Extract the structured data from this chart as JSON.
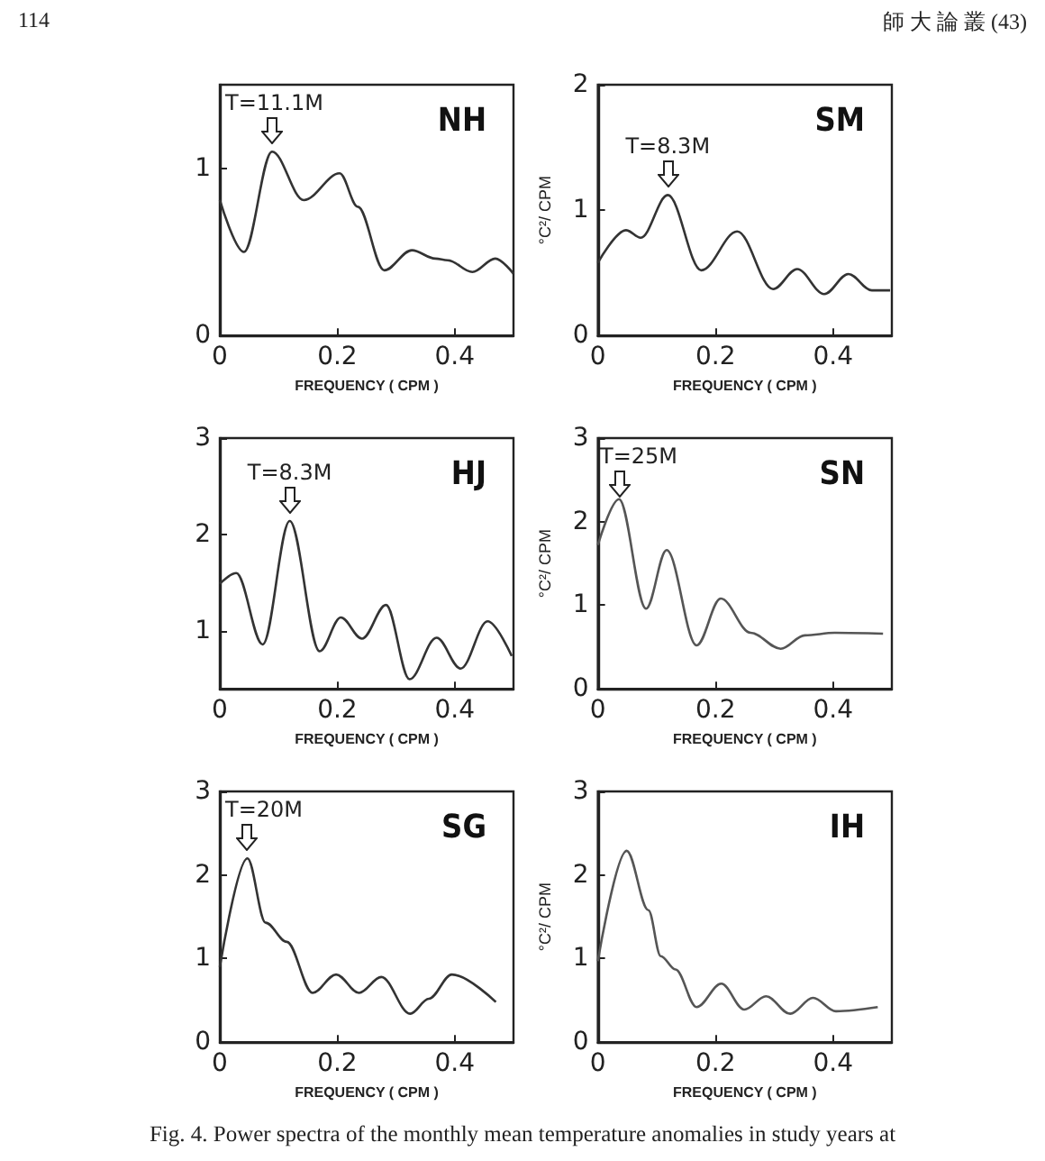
{
  "chart_data": [
    {
      "type": "line",
      "title": "NH",
      "xlabel": "FREQUENCY ( CPM )",
      "xlim": [
        0,
        0.5
      ],
      "xticks": [
        0,
        0.2,
        0.4
      ],
      "ylim": [
        0,
        1.5
      ],
      "yticks": [
        0,
        1
      ],
      "grid": false,
      "marker": "none",
      "line_style": "solid",
      "color": "#333333",
      "x": [
        0,
        0.041,
        0.089,
        0.143,
        0.204,
        0.235,
        0.28,
        0.327,
        0.367,
        0.388,
        0.43,
        0.469,
        0.5
      ],
      "values": [
        0.81,
        0.5,
        1.1,
        0.81,
        0.97,
        0.77,
        0.39,
        0.51,
        0.46,
        0.45,
        0.38,
        0.46,
        0.37
      ],
      "annotations": [
        "114",
        "師 大 論 叢 (43)",
        {
          "text": "T=11.1M",
          "x": 0.089,
          "y": 1.1
        }
      ]
    },
    {
      "type": "line",
      "title": "SM",
      "xlabel": "FREQUENCY ( CPM )",
      "ylabel": "°C²/ CPM",
      "xlim": [
        0,
        0.5
      ],
      "xticks": [
        0,
        0.2,
        0.4
      ],
      "ylim": [
        0,
        2
      ],
      "yticks": [
        0,
        1,
        2
      ],
      "grid": false,
      "marker": "none",
      "line_style": "solid",
      "color": "#333333",
      "x": [
        0,
        0.048,
        0.073,
        0.119,
        0.176,
        0.237,
        0.298,
        0.339,
        0.385,
        0.426,
        0.466,
        0.497
      ],
      "values": [
        0.58,
        0.84,
        0.78,
        1.12,
        0.52,
        0.83,
        0.37,
        0.53,
        0.33,
        0.49,
        0.36,
        0.36
      ],
      "annotations": [
        {
          "text": "T=8.3M",
          "x": 0.119,
          "y": 1.12
        }
      ]
    },
    {
      "type": "line",
      "title": "HJ",
      "xlabel": "FREQUENCY ( CPM )",
      "xlim": [
        0,
        0.5
      ],
      "xticks": [
        0,
        0.2,
        0.4
      ],
      "ylim": [
        0.4,
        3
      ],
      "yticks": [
        1,
        2,
        3
      ],
      "grid": false,
      "marker": "none",
      "line_style": "solid",
      "color": "#333333",
      "x": [
        0,
        0.028,
        0.073,
        0.119,
        0.17,
        0.206,
        0.242,
        0.283,
        0.323,
        0.369,
        0.41,
        0.456,
        0.497
      ],
      "values": [
        1.49,
        1.6,
        0.86,
        2.14,
        0.79,
        1.14,
        0.92,
        1.27,
        0.5,
        0.93,
        0.61,
        1.1,
        0.74
      ],
      "annotations": [
        {
          "text": "T=8.3M",
          "x": 0.119,
          "y": 2.14
        }
      ]
    },
    {
      "type": "line",
      "title": "SN",
      "xlabel": "FREQUENCY ( CPM )",
      "ylabel": "°C²/ CPM",
      "xlim": [
        0,
        0.5
      ],
      "xticks": [
        0,
        0.2,
        0.4
      ],
      "ylim": [
        0,
        3
      ],
      "yticks": [
        0,
        1,
        2,
        3
      ],
      "grid": false,
      "marker": "none",
      "line_style": "solid",
      "color": "#555555",
      "x": [
        0,
        0.036,
        0.082,
        0.117,
        0.168,
        0.209,
        0.26,
        0.311,
        0.352,
        0.403,
        0.485
      ],
      "values": [
        1.72,
        2.27,
        0.96,
        1.66,
        0.52,
        1.08,
        0.67,
        0.48,
        0.64,
        0.67,
        0.66
      ],
      "annotations": [
        {
          "text": "T=25M",
          "x": 0.036,
          "y": 2.27
        }
      ]
    },
    {
      "type": "line",
      "title": "SG",
      "xlabel": "FREQUENCY ( CPM )",
      "xlim": [
        0,
        0.5
      ],
      "xticks": [
        0,
        0.2,
        0.4
      ],
      "ylim": [
        0,
        3
      ],
      "yticks": [
        0,
        1,
        2,
        3
      ],
      "grid": false,
      "marker": "none",
      "line_style": "solid",
      "color": "#333333",
      "x": [
        0,
        0.047,
        0.078,
        0.114,
        0.158,
        0.198,
        0.237,
        0.275,
        0.324,
        0.356,
        0.395,
        0.47
      ],
      "values": [
        0.9,
        2.2,
        1.43,
        1.2,
        0.59,
        0.81,
        0.59,
        0.78,
        0.34,
        0.52,
        0.81,
        0.48
      ],
      "annotations": [
        {
          "text": "T=20M",
          "x": 0.047,
          "y": 2.2
        }
      ]
    },
    {
      "type": "line",
      "title": "IH",
      "xlabel": "FREQUENCY ( CPM )",
      "ylabel": "°C²/ CPM",
      "xlim": [
        0,
        0.5
      ],
      "xticks": [
        0,
        0.2,
        0.4
      ],
      "ylim": [
        0,
        3
      ],
      "yticks": [
        0,
        1,
        2,
        3
      ],
      "grid": false,
      "marker": "none",
      "line_style": "solid",
      "color": "#555555",
      "x": [
        0,
        0.049,
        0.086,
        0.107,
        0.132,
        0.168,
        0.21,
        0.249,
        0.286,
        0.327,
        0.366,
        0.405,
        0.476
      ],
      "values": [
        0.97,
        2.29,
        1.58,
        1.03,
        0.87,
        0.42,
        0.7,
        0.39,
        0.55,
        0.34,
        0.53,
        0.37,
        0.42
      ],
      "annotations": [
        "Fig. 4. Power spectra of the monthly mean temperature anomalies in study years at"
      ]
    }
  ]
}
